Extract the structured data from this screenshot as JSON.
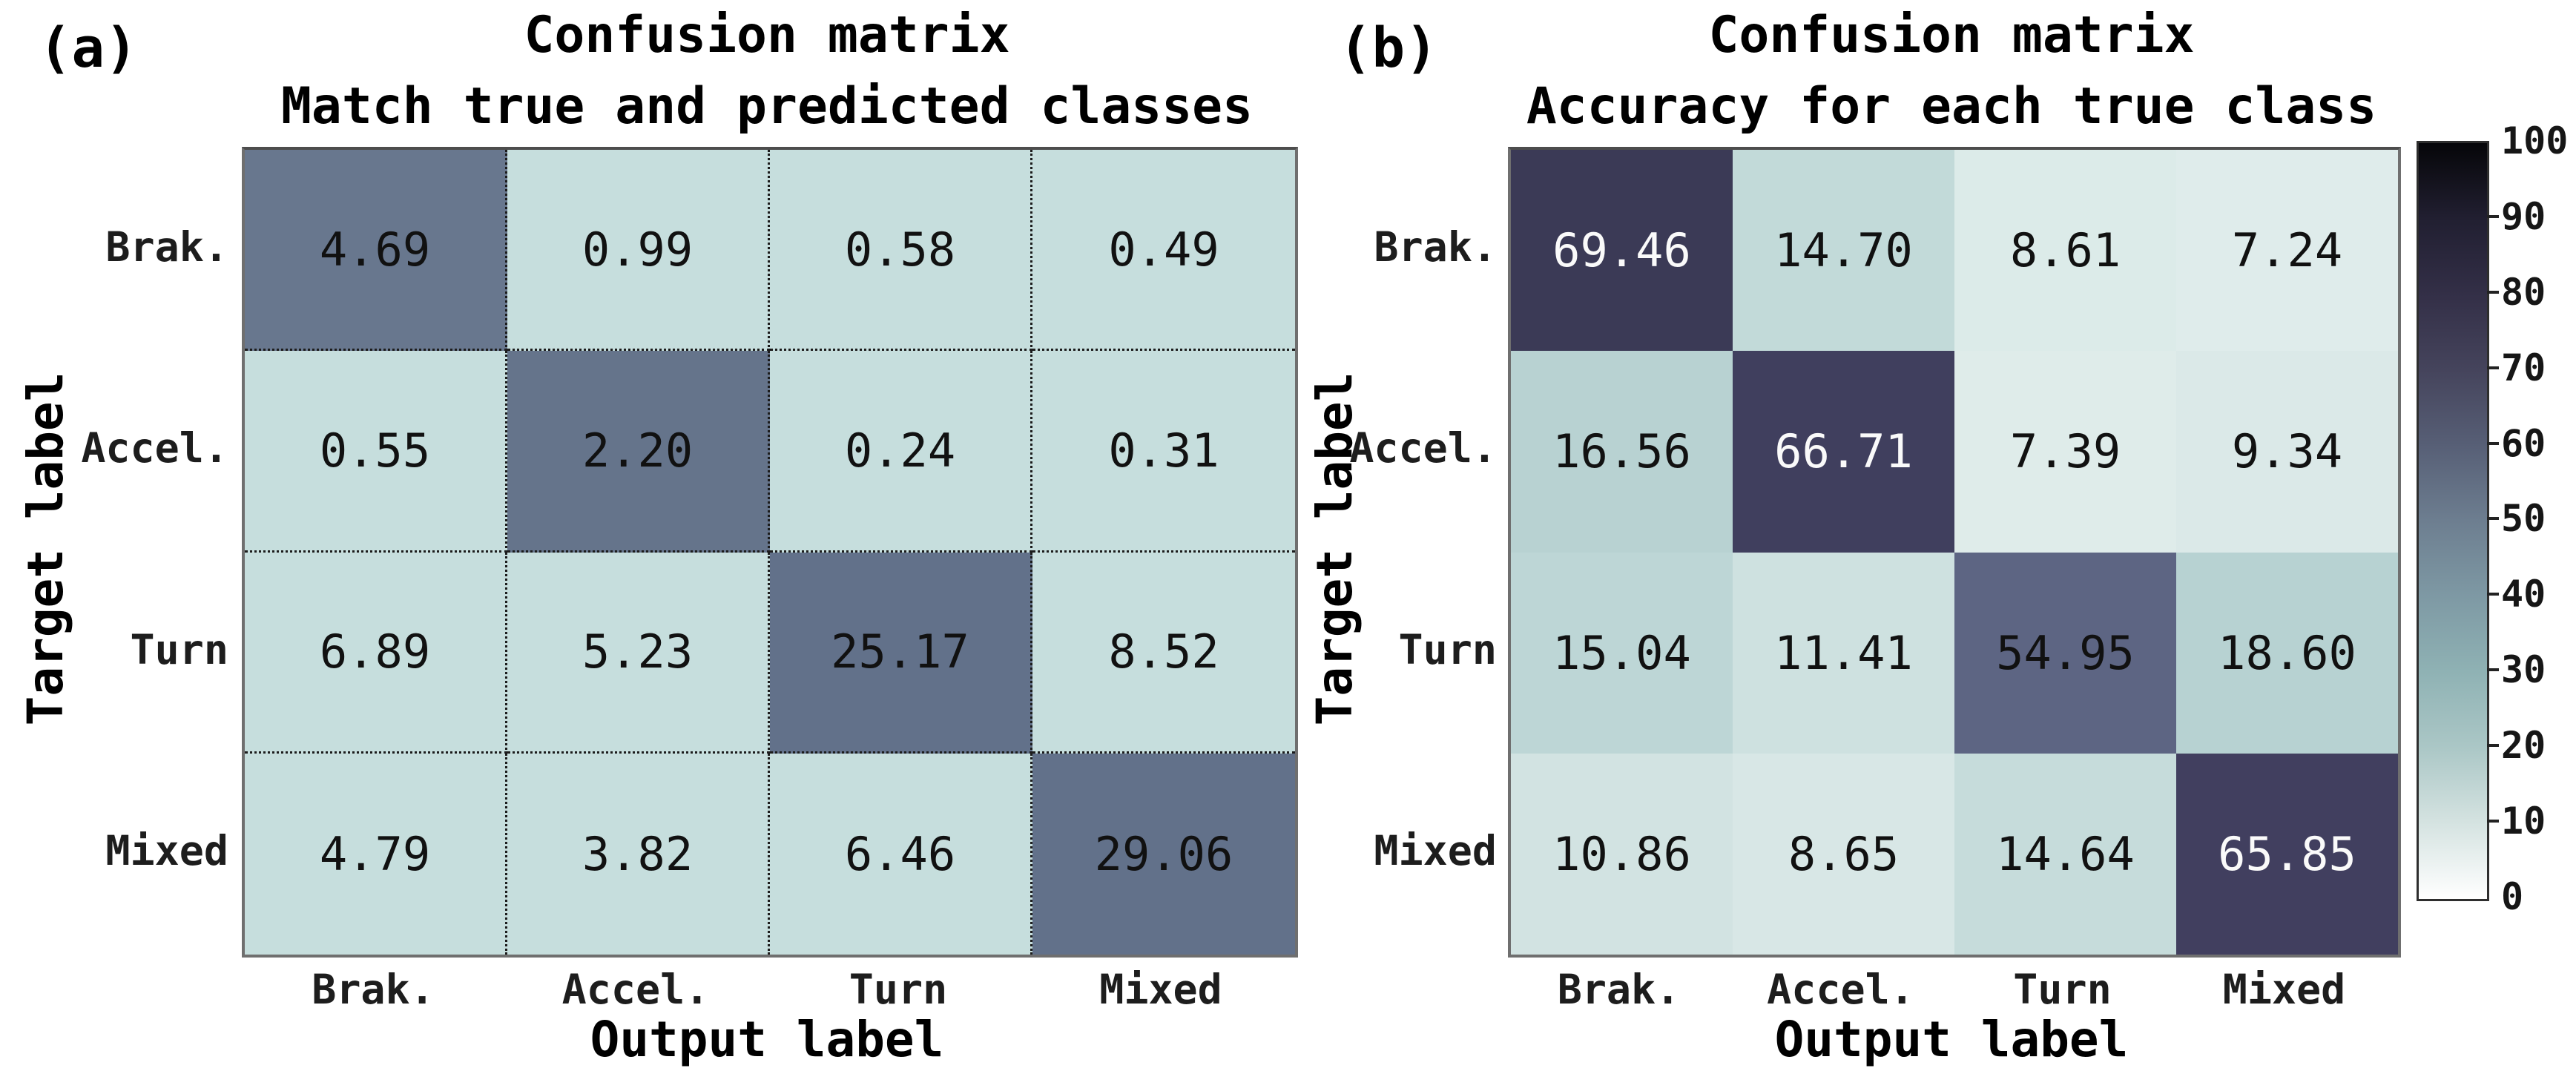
{
  "panels": [
    {
      "tag": "(a)",
      "title1": "Confusion matrix",
      "title2": "Match true and predicted classes",
      "xlabel": "Output label",
      "ylabel": "Target label",
      "row_labels": [
        "Brak.",
        "Accel.",
        "Turn",
        "Mixed"
      ],
      "col_labels": [
        "Brak.",
        "Accel.",
        "Turn",
        "Mixed"
      ],
      "cells": [
        [
          {
            "v": "4.69",
            "bg": "#68778e",
            "fg": "#111111"
          },
          {
            "v": "0.99",
            "bg": "#c6dedd",
            "fg": "#111111"
          },
          {
            "v": "0.58",
            "bg": "#c6dedd",
            "fg": "#111111"
          },
          {
            "v": "0.49",
            "bg": "#c6dedd",
            "fg": "#111111"
          }
        ],
        [
          {
            "v": "0.55",
            "bg": "#c6dedd",
            "fg": "#111111"
          },
          {
            "v": "2.20",
            "bg": "#65748b",
            "fg": "#111111"
          },
          {
            "v": "0.24",
            "bg": "#c6dedd",
            "fg": "#111111"
          },
          {
            "v": "0.31",
            "bg": "#c6dedd",
            "fg": "#111111"
          }
        ],
        [
          {
            "v": "6.89",
            "bg": "#c6dedd",
            "fg": "#111111"
          },
          {
            "v": "5.23",
            "bg": "#c6dedd",
            "fg": "#111111"
          },
          {
            "v": "25.17",
            "bg": "#62718a",
            "fg": "#111111"
          },
          {
            "v": "8.52",
            "bg": "#c6dedd",
            "fg": "#111111"
          }
        ],
        [
          {
            "v": "4.79",
            "bg": "#c6dedd",
            "fg": "#111111"
          },
          {
            "v": "3.82",
            "bg": "#c6dedd",
            "fg": "#111111"
          },
          {
            "v": "6.46",
            "bg": "#c6dedd",
            "fg": "#111111"
          },
          {
            "v": "29.06",
            "bg": "#62718a",
            "fg": "#111111"
          }
        ]
      ]
    },
    {
      "tag": "(b)",
      "title1": "Confusion matrix",
      "title2": "Accuracy for each true class",
      "xlabel": "Output label",
      "ylabel": "Target label",
      "row_labels": [
        "Brak.",
        "Accel.",
        "Turn",
        "Mixed"
      ],
      "col_labels": [
        "Brak.",
        "Accel.",
        "Turn",
        "Mixed"
      ],
      "cells": [
        [
          {
            "v": "69.46",
            "bg": "#3b3a56",
            "fg": "#fafafa"
          },
          {
            "v": "14.70",
            "bg": "#c2dad9",
            "fg": "#111111"
          },
          {
            "v": "8.61",
            "bg": "#dcebe9",
            "fg": "#111111"
          },
          {
            "v": "7.24",
            "bg": "#dfeceb",
            "fg": "#111111"
          }
        ],
        [
          {
            "v": "16.56",
            "bg": "#b8d2d2",
            "fg": "#111111"
          },
          {
            "v": "66.71",
            "bg": "#403f5e",
            "fg": "#fafafa"
          },
          {
            "v": "7.39",
            "bg": "#dfecea",
            "fg": "#111111"
          },
          {
            "v": "9.34",
            "bg": "#dbe9e8",
            "fg": "#111111"
          }
        ],
        [
          {
            "v": "15.04",
            "bg": "#bdd6d6",
            "fg": "#111111"
          },
          {
            "v": "11.41",
            "bg": "#cee1e0",
            "fg": "#111111"
          },
          {
            "v": "54.95",
            "bg": "#5d6583",
            "fg": "#111111"
          },
          {
            "v": "18.60",
            "bg": "#b7d2d2",
            "fg": "#111111"
          }
        ],
        [
          {
            "v": "10.86",
            "bg": "#d2e3e2",
            "fg": "#111111"
          },
          {
            "v": "8.65",
            "bg": "#d8e7e6",
            "fg": "#111111"
          },
          {
            "v": "14.64",
            "bg": "#c6dcdb",
            "fg": "#111111"
          },
          {
            "v": "65.85",
            "bg": "#413f5f",
            "fg": "#fafafa"
          }
        ]
      ]
    }
  ],
  "colorbar": {
    "ticks": [
      "100",
      "90",
      "80",
      "70",
      "60",
      "50",
      "40",
      "30",
      "20",
      "10",
      "0"
    ],
    "stops": [
      "#060609",
      "#211f31",
      "#332f47",
      "#45445c",
      "#575f76",
      "#6d7e90",
      "#7e99a4",
      "#8fb2b4",
      "#abc7c6",
      "#d5e3e1",
      "#ffffff"
    ]
  },
  "chart_data": [
    {
      "type": "heatmap",
      "title": "Confusion matrix — Match true and predicted classes",
      "xlabel": "Output label",
      "ylabel": "Target label",
      "x_categories": [
        "Brak.",
        "Accel.",
        "Turn",
        "Mixed"
      ],
      "y_categories": [
        "Brak.",
        "Accel.",
        "Turn",
        "Mixed"
      ],
      "values": [
        [
          4.69,
          0.99,
          0.58,
          0.49
        ],
        [
          0.55,
          2.2,
          0.24,
          0.31
        ],
        [
          6.89,
          5.23,
          25.17,
          8.52
        ],
        [
          4.79,
          3.82,
          6.46,
          29.06
        ]
      ],
      "grid": "dotted internal gridlines",
      "legend_position": "none"
    },
    {
      "type": "heatmap",
      "title": "Confusion matrix — Accuracy for each true class",
      "xlabel": "Output label",
      "ylabel": "Target label",
      "x_categories": [
        "Brak.",
        "Accel.",
        "Turn",
        "Mixed"
      ],
      "y_categories": [
        "Brak.",
        "Accel.",
        "Turn",
        "Mixed"
      ],
      "values": [
        [
          69.46,
          14.7,
          8.61,
          7.24
        ],
        [
          16.56,
          66.71,
          7.39,
          9.34
        ],
        [
          15.04,
          11.41,
          54.95,
          18.6
        ],
        [
          10.86,
          8.65,
          14.64,
          65.85
        ]
      ],
      "grid": "off",
      "colorbar_range": [
        0,
        100
      ],
      "colorbar_ticks": [
        100,
        90,
        80,
        70,
        60,
        50,
        40,
        30,
        20,
        10,
        0
      ],
      "colorbar_position": "right"
    }
  ]
}
